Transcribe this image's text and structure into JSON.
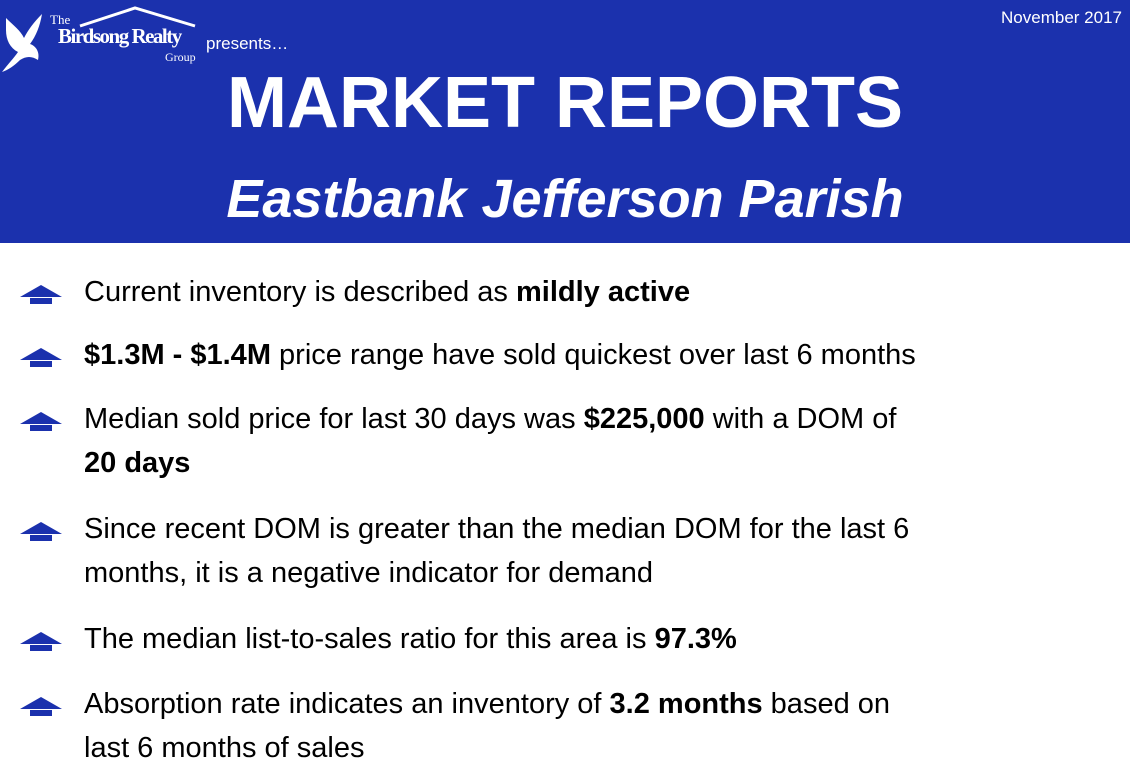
{
  "header": {
    "date": "November 2017",
    "logo": {
      "the": "The",
      "name": "Birdsong Realty",
      "group": "Group"
    },
    "presents": "presents…",
    "title": "MARKET REPORTS",
    "subtitle": "Eastbank Jefferson Parish"
  },
  "bullets": [
    {
      "lines": [
        [
          {
            "text": "Current inventory is described as "
          },
          {
            "text": "mildly active",
            "bold": true
          }
        ]
      ]
    },
    {
      "lines": [
        [
          {
            "text": "$1.3M - $1.4M",
            "bold": true
          },
          {
            "text": " price range have sold quickest over last 6 months"
          }
        ]
      ]
    },
    {
      "lines": [
        [
          {
            "text": "Median sold price for last 30 days was "
          },
          {
            "text": "$225,000",
            "bold": true
          },
          {
            "text": " with a DOM of"
          }
        ],
        [
          {
            "text": "20 days",
            "bold": true
          }
        ]
      ]
    },
    {
      "lines": [
        [
          {
            "text": "Since recent DOM is greater than the median DOM for the last 6"
          }
        ],
        [
          {
            "text": "months, it is a negative indicator for demand"
          }
        ]
      ]
    },
    {
      "lines": [
        [
          {
            "text": "The median list-to-sales ratio for this area is "
          },
          {
            "text": "97.3%",
            "bold": true
          }
        ]
      ]
    },
    {
      "lines": [
        [
          {
            "text": "Absorption rate indicates an inventory of "
          },
          {
            "text": "3.2 months",
            "bold": true
          },
          {
            "text": " based on"
          }
        ],
        [
          {
            "text": "last 6 months of sales"
          }
        ]
      ]
    }
  ]
}
